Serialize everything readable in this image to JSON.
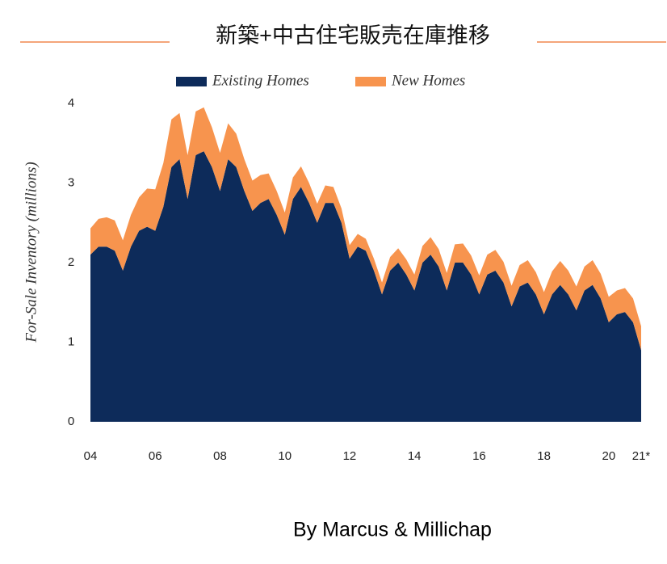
{
  "chart_data": {
    "type": "stacked_area",
    "title": "新築+中古住宅販売在庫推移",
    "ylabel": "For-Sale Inventory (millions)",
    "footer": "By Marcus & Millichap",
    "x": [
      2004,
      2004.25,
      2004.5,
      2004.75,
      2005,
      2005.25,
      2005.5,
      2005.75,
      2006,
      2006.25,
      2006.5,
      2006.75,
      2007,
      2007.25,
      2007.5,
      2007.75,
      2008,
      2008.25,
      2008.5,
      2008.75,
      2009,
      2009.25,
      2009.5,
      2009.75,
      2010,
      2010.25,
      2010.5,
      2010.75,
      2011,
      2011.25,
      2011.5,
      2011.75,
      2012,
      2012.25,
      2012.5,
      2012.75,
      2013,
      2013.25,
      2013.5,
      2013.75,
      2014,
      2014.25,
      2014.5,
      2014.75,
      2015,
      2015.25,
      2015.5,
      2015.75,
      2016,
      2016.25,
      2016.5,
      2016.75,
      2017,
      2017.25,
      2017.5,
      2017.75,
      2018,
      2018.25,
      2018.5,
      2018.75,
      2019,
      2019.25,
      2019.5,
      2019.75,
      2020,
      2020.25,
      2020.5,
      2020.75,
      2021
    ],
    "series": [
      {
        "name": "Existing Homes",
        "color": "#0d2b5a",
        "values": [
          2.1,
          2.2,
          2.2,
          2.15,
          1.9,
          2.2,
          2.4,
          2.45,
          2.4,
          2.7,
          3.2,
          3.3,
          2.8,
          3.35,
          3.4,
          3.2,
          2.9,
          3.3,
          3.2,
          2.9,
          2.65,
          2.75,
          2.8,
          2.6,
          2.35,
          2.8,
          2.95,
          2.75,
          2.5,
          2.75,
          2.75,
          2.5,
          2.05,
          2.2,
          2.15,
          1.9,
          1.6,
          1.9,
          2.0,
          1.85,
          1.65,
          2.0,
          2.1,
          1.95,
          1.65,
          2.0,
          2.0,
          1.85,
          1.6,
          1.85,
          1.9,
          1.75,
          1.45,
          1.7,
          1.75,
          1.6,
          1.35,
          1.6,
          1.72,
          1.6,
          1.4,
          1.65,
          1.72,
          1.55,
          1.25,
          1.35,
          1.38,
          1.25,
          0.9
        ]
      },
      {
        "name": "New Homes",
        "color": "#f7944e",
        "values": [
          0.33,
          0.35,
          0.37,
          0.38,
          0.38,
          0.4,
          0.42,
          0.48,
          0.52,
          0.55,
          0.6,
          0.58,
          0.55,
          0.55,
          0.55,
          0.5,
          0.48,
          0.45,
          0.42,
          0.4,
          0.38,
          0.35,
          0.32,
          0.3,
          0.28,
          0.27,
          0.26,
          0.25,
          0.24,
          0.22,
          0.2,
          0.18,
          0.17,
          0.16,
          0.15,
          0.15,
          0.15,
          0.17,
          0.18,
          0.19,
          0.2,
          0.21,
          0.22,
          0.22,
          0.22,
          0.23,
          0.24,
          0.24,
          0.24,
          0.25,
          0.26,
          0.26,
          0.26,
          0.27,
          0.28,
          0.28,
          0.28,
          0.29,
          0.3,
          0.3,
          0.3,
          0.3,
          0.31,
          0.31,
          0.32,
          0.3,
          0.3,
          0.3,
          0.3
        ]
      }
    ],
    "xlim": [
      2004,
      2021
    ],
    "xticks": [
      {
        "value": 2004,
        "label": "04"
      },
      {
        "value": 2006,
        "label": "06"
      },
      {
        "value": 2008,
        "label": "08"
      },
      {
        "value": 2010,
        "label": "10"
      },
      {
        "value": 2012,
        "label": "12"
      },
      {
        "value": 2014,
        "label": "14"
      },
      {
        "value": 2016,
        "label": "16"
      },
      {
        "value": 2018,
        "label": "18"
      },
      {
        "value": 2020,
        "label": "20"
      },
      {
        "value": 2021,
        "label": "21*"
      }
    ],
    "ylim": [
      0,
      4
    ],
    "yticks": [
      0,
      1,
      2,
      3,
      4
    ],
    "grid": false,
    "legend": "top"
  }
}
